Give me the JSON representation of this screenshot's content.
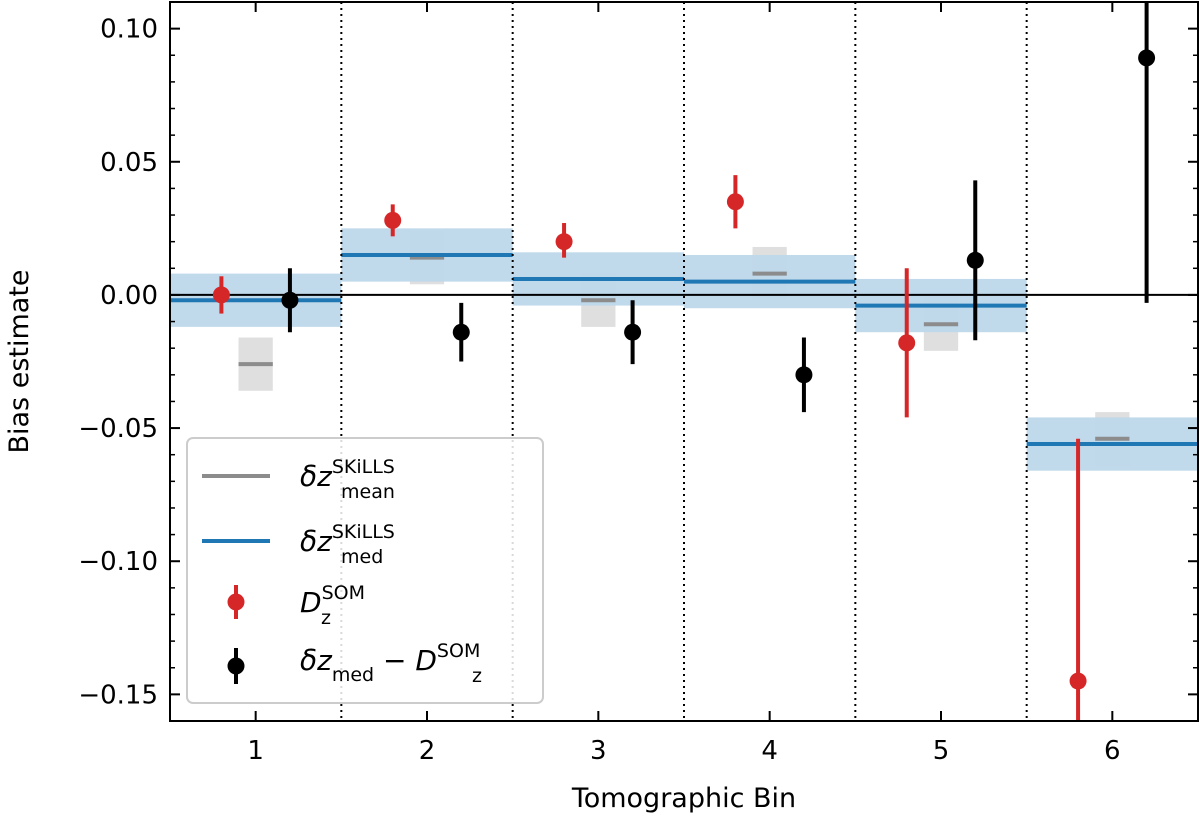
{
  "chart_data": {
    "type": "scatter",
    "xlabel": "Tomographic Bin",
    "ylabel": "Bias estimate",
    "xlim": [
      0.5,
      6.5
    ],
    "ylim": [
      -0.16,
      0.11
    ],
    "xticks": [
      1,
      2,
      3,
      4,
      5,
      6
    ],
    "yticks": [
      -0.15,
      -0.1,
      -0.05,
      0.0,
      0.05,
      0.1
    ],
    "ytick_labels": [
      "−0.15",
      "−0.10",
      "−0.05",
      "0.00",
      "0.05",
      "0.10"
    ],
    "bin_separators": [
      1.5,
      2.5,
      3.5,
      4.5,
      5.5
    ],
    "zero_line": 0.0,
    "legend_position": "lower-left",
    "series": [
      {
        "name": "dz_mean_SKiLLS",
        "kind": "bin-band",
        "color": "#8c8c8c",
        "band_color": "#d9d9d9",
        "bins": [
          1,
          2,
          3,
          4,
          5,
          6
        ],
        "values": [
          -0.026,
          0.014,
          -0.002,
          0.008,
          -0.011,
          -0.054
        ],
        "errors": [
          0.01,
          0.01,
          0.01,
          0.01,
          0.01,
          0.01
        ]
      },
      {
        "name": "dz_med_SKiLLS",
        "kind": "bin-band",
        "color": "#1f77b4",
        "band_color": "#bdd7ea",
        "bins": [
          1,
          2,
          3,
          4,
          5,
          6
        ],
        "values": [
          -0.002,
          0.015,
          0.006,
          0.005,
          -0.004,
          -0.056
        ],
        "errors": [
          0.01,
          0.01,
          0.01,
          0.01,
          0.01,
          0.01
        ]
      },
      {
        "name": "Dz_SOM",
        "kind": "errorbar",
        "color": "#d62728",
        "x": [
          0.8,
          1.8,
          2.8,
          3.8,
          4.8,
          5.8
        ],
        "values": [
          0.0,
          0.028,
          0.02,
          0.035,
          -0.018,
          -0.145
        ],
        "err_low": [
          0.007,
          0.006,
          0.006,
          0.01,
          0.028,
          0.091
        ],
        "err_high": [
          0.007,
          0.006,
          0.007,
          0.01,
          0.028,
          0.091
        ]
      },
      {
        "name": "dz_med_minus_Dz_SOM",
        "kind": "errorbar",
        "color": "#000000",
        "x": [
          1.2,
          2.2,
          3.2,
          4.2,
          5.2,
          6.2
        ],
        "values": [
          -0.002,
          -0.014,
          -0.014,
          -0.03,
          0.013,
          0.089
        ],
        "err_low": [
          0.012,
          0.011,
          0.012,
          0.014,
          0.03,
          0.092
        ],
        "err_high": [
          0.012,
          0.011,
          0.012,
          0.014,
          0.03,
          0.092
        ]
      }
    ],
    "legend": {
      "mean": {
        "main": "δz",
        "sup": "SKiLLS",
        "sub": "mean"
      },
      "med": {
        "main": "δz",
        "sup": "SKiLLS",
        "sub": "med"
      },
      "som": {
        "main": "D",
        "sup": "SOM",
        "sub": "z"
      },
      "diff": {
        "main": "δz",
        "sub": "med",
        "minus": " − D",
        "sup2": "SOM",
        "sub2": "z"
      }
    }
  }
}
